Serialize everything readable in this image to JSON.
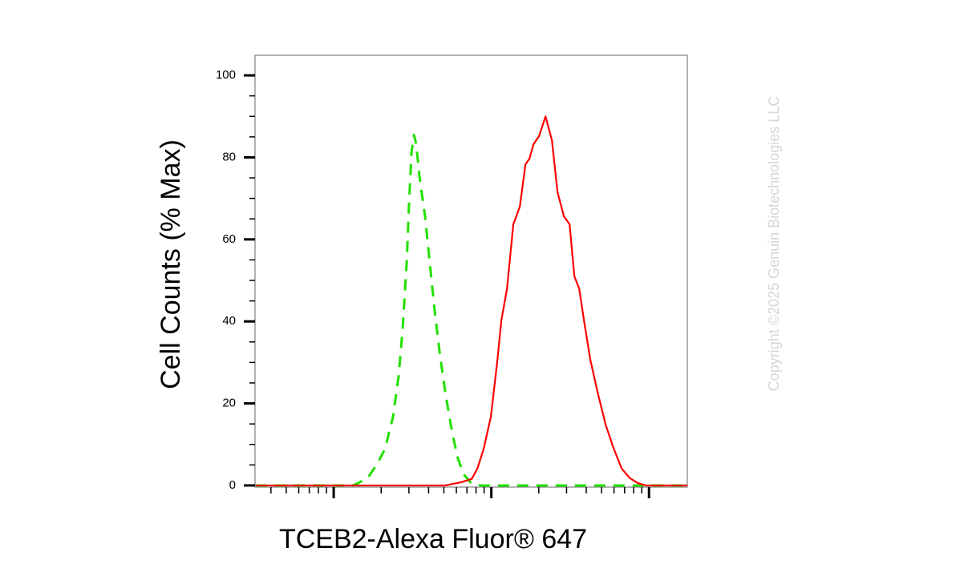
{
  "chart_data": {
    "type": "line",
    "ylabel": "Cell Counts (% Max)",
    "xlabel": "TCEB2-Alexa Fluor® 647",
    "watermark": "Copyright ©2025 Genuin Biotechnologies LLC",
    "log_x": true,
    "xlim": [
      31.7,
      17500
    ],
    "xticks": [
      100,
      1000,
      10000
    ],
    "xticks_minor": [
      40,
      50,
      60,
      70,
      80,
      90,
      200,
      300,
      400,
      500,
      600,
      700,
      800,
      900,
      2000,
      3000,
      4000,
      5000,
      6000,
      7000,
      8000,
      9000
    ],
    "ylim": [
      -0.4,
      104.9
    ],
    "yticks": [
      0,
      20,
      40,
      60,
      80,
      100
    ],
    "yticks_minor": [
      5,
      10,
      15,
      25,
      30,
      35,
      45,
      50,
      55,
      65,
      70,
      75,
      85,
      90,
      95
    ],
    "series": [
      {
        "color": "#22e000",
        "dashed": true,
        "x": [
          32,
          132,
          140,
          164,
          188,
          212,
          238,
          258,
          274,
          290,
          301,
          312,
          323,
          334,
          350,
          380,
          408,
          438,
          470,
          510,
          553,
          608,
          668,
          751,
          864,
          17500
        ],
        "values": [
          0,
          0,
          0.4,
          1.8,
          5.1,
          9.0,
          16.8,
          26.6,
          38.3,
          53.9,
          69.5,
          81.3,
          85.5,
          83.2,
          75.4,
          65.6,
          53.9,
          42.2,
          32.4,
          22.7,
          14.8,
          7.0,
          2.7,
          0.4,
          0,
          0
        ]
      },
      {
        "color": "#ff0000",
        "dashed": false,
        "x": [
          32,
          510,
          541,
          645,
          751,
          815,
          895,
          994,
          1092,
          1157,
          1257,
          1380,
          1516,
          1646,
          1745,
          1850,
          2008,
          2205,
          2423,
          2629,
          2888,
          3135,
          3363,
          3608,
          3870,
          4252,
          4724,
          5313,
          5973,
          6714,
          7549,
          8488,
          9541,
          17500
        ],
        "values": [
          0,
          0,
          0.2,
          0.8,
          1.6,
          4.1,
          9.0,
          16.8,
          30.5,
          40.2,
          48.0,
          63.7,
          68.0,
          78.3,
          79.7,
          83.2,
          85.2,
          90.0,
          84.2,
          71.5,
          65.6,
          63.7,
          51.0,
          48.0,
          40.2,
          30.5,
          22.7,
          14.8,
          9.0,
          4.1,
          1.8,
          0.6,
          0,
          0
        ]
      }
    ]
  }
}
